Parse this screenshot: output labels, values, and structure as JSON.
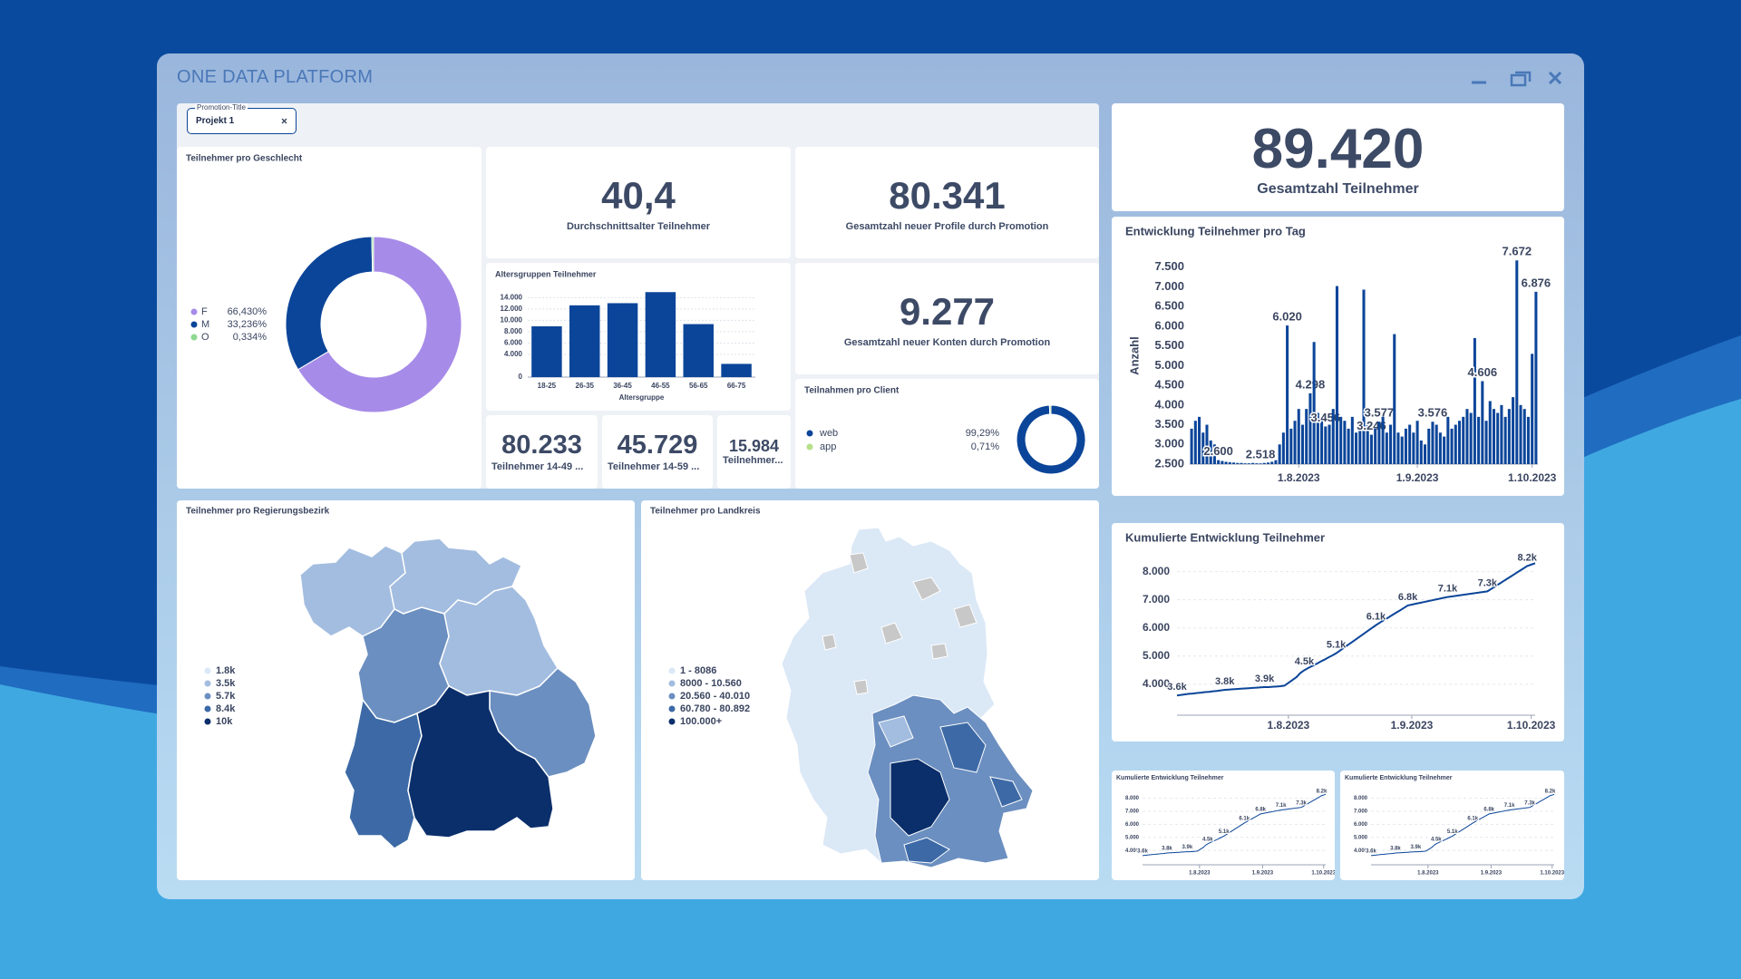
{
  "header": {
    "title": "ONE DATA PLATFORM"
  },
  "filter": {
    "label": "Promotion-Title",
    "value": "Projekt 1"
  },
  "kpis": [
    {
      "value": "40,4",
      "label": "Durchschnittsalter Teilnehmer"
    },
    {
      "value": "80.341",
      "label": "Gesamtzahl neuer Profile durch Promotion"
    },
    {
      "value": "9.277",
      "label": "Gesamtzahl neuer Konten durch Promotion"
    },
    {
      "value": "80.233",
      "label": "Teilnehmer 14-49 ..."
    },
    {
      "value": "45.729",
      "label": "Teilnehmer 14-59 ..."
    },
    {
      "value": "15.984",
      "label": "Teilnehmer..."
    },
    {
      "value": "89.420",
      "label": "Gesamtzahl Teilnehmer"
    }
  ],
  "maps": [
    {
      "title": "Teilnehmer pro Regierungsbezirk",
      "legend": [
        "1.8k",
        "3.5k",
        "5.7k",
        "8.4k",
        "10k"
      ],
      "colors": [
        "#dbe8f6",
        "#a3bde0",
        "#6b8fc0",
        "#3d6aa6",
        "#0b2f6b"
      ]
    },
    {
      "title": "Teilnehmer pro Landkreis",
      "legend": [
        "1 - 8086",
        "8000 - 10.560",
        "20.560 - 40.010",
        "60.780 - 80.892",
        "100.000+"
      ],
      "colors": [
        "#dbe8f6",
        "#a3bde0",
        "#6b8fc0",
        "#3d6aa6",
        "#0b2f6b"
      ]
    }
  ],
  "chart_data": [
    {
      "type": "pie",
      "title": "Teilnehmer pro Geschlecht",
      "categories": [
        "F",
        "M",
        "O"
      ],
      "values": [
        66.43,
        33.236,
        0.334
      ],
      "value_labels": [
        "66,430%",
        "33,236%",
        "0,334%"
      ],
      "colors": [
        "#a78be8",
        "#0b4599",
        "#8fd88f"
      ]
    },
    {
      "type": "bar",
      "title": "Altersgruppen Teilnehmer",
      "x_label": "Altersgruppe",
      "categories": [
        "18-25",
        "26-35",
        "36-45",
        "46-55",
        "56-65",
        "66-75"
      ],
      "values": [
        8950,
        12650,
        13030,
        14980,
        9340,
        2330
      ],
      "color": "#0b4599",
      "ylim": [
        0,
        15500
      ],
      "yticks": [
        0,
        {
          "value": 4000,
          "label": "4.000"
        },
        {
          "value": 6000,
          "label": "6.000"
        },
        {
          "value": 8000,
          "label": "8.000"
        },
        {
          "value": 10000,
          "label": "10.000"
        },
        {
          "value": 12000,
          "label": "12.000"
        },
        {
          "value": 14000,
          "label": "14.000"
        }
      ],
      "grid": true
    },
    {
      "type": "pie",
      "title": "Teilnahmen pro Client",
      "categories": [
        "web",
        "app"
      ],
      "values": [
        99.29,
        0.71
      ],
      "value_labels": [
        "99,29%",
        "0,71%"
      ],
      "colors": [
        "#0b4599",
        "#b5e08a"
      ]
    },
    {
      "type": "bar",
      "title": "Entwicklung Teilnehmer pro Tag",
      "y_label": "Anzahl",
      "categories": [
        null,
        null,
        null,
        null,
        null,
        null,
        null,
        null,
        null,
        null,
        null,
        null,
        null,
        null,
        null,
        null,
        null,
        null,
        null,
        null,
        null,
        null,
        null,
        null,
        null,
        null,
        null,
        null,
        "1.8.2023",
        null,
        null,
        null,
        null,
        null,
        null,
        null,
        null,
        null,
        null,
        null,
        null,
        null,
        null,
        null,
        null,
        null,
        null,
        null,
        null,
        null,
        null,
        null,
        null,
        null,
        null,
        null,
        null,
        null,
        null,
        "1.9.2023",
        null,
        null,
        null,
        null,
        null,
        null,
        null,
        null,
        null,
        null,
        null,
        null,
        null,
        null,
        null,
        null,
        null,
        null,
        null,
        null,
        null,
        null,
        null,
        null,
        null,
        null,
        null,
        null,
        null,
        "1.10.2023",
        null
      ],
      "values": [
        3400,
        3600,
        3700,
        3300,
        3500,
        3100,
        3000,
        2600,
        2580,
        2560,
        2550,
        2540,
        2530,
        2530,
        2520,
        2520,
        2530,
        2520,
        2518,
        2530,
        2540,
        2560,
        2600,
        3000,
        3300,
        6020,
        3400,
        3600,
        3900,
        3500,
        3900,
        4298,
        5600,
        3800,
        3700,
        3456,
        3500,
        3900,
        7020,
        3700,
        3600,
        3400,
        3700,
        3300,
        3500,
        6930,
        3500,
        3246,
        3400,
        3577,
        3700,
        3300,
        3500,
        5800,
        3300,
        3200,
        3400,
        3500,
        3300,
        3600,
        3100,
        3000,
        3400,
        3576,
        3500,
        3300,
        3200,
        3700,
        3400,
        3500,
        3600,
        3700,
        3900,
        3800,
        5700,
        3700,
        4606,
        3600,
        4100,
        3900,
        3800,
        4000,
        3700,
        3900,
        4200,
        7672,
        4000,
        3900,
        3700,
        5300,
        6876
      ],
      "value_labels": [
        null,
        null,
        null,
        null,
        null,
        null,
        null,
        "2.600",
        null,
        null,
        null,
        null,
        null,
        null,
        null,
        null,
        null,
        null,
        "2.518",
        null,
        null,
        null,
        null,
        null,
        null,
        "6.020",
        null,
        null,
        null,
        null,
        null,
        "4.298",
        null,
        null,
        null,
        "3.456",
        null,
        null,
        null,
        null,
        null,
        null,
        null,
        null,
        null,
        null,
        null,
        "3.246",
        null,
        "3.577",
        null,
        null,
        null,
        null,
        null,
        null,
        null,
        null,
        null,
        null,
        null,
        null,
        null,
        "3.576",
        null,
        null,
        null,
        null,
        null,
        null,
        null,
        null,
        null,
        null,
        null,
        null,
        "4.606",
        null,
        null,
        null,
        null,
        null,
        null,
        null,
        null,
        "7.672",
        null,
        null,
        null,
        null,
        "6.876"
      ],
      "color": "#0b4599",
      "ylim": [
        2500,
        8000
      ],
      "yticks": [
        {
          "value": 2500,
          "label": "2.500"
        },
        {
          "value": 3000,
          "label": "3.000"
        },
        {
          "value": 3500,
          "label": "3.500"
        },
        {
          "value": 4000,
          "label": "4.000"
        },
        {
          "value": 4500,
          "label": "4.500"
        },
        {
          "value": 5000,
          "label": "5.000"
        },
        {
          "value": 5500,
          "label": "5.500"
        },
        {
          "value": 6000,
          "label": "6.000"
        },
        {
          "value": 6500,
          "label": "6.500"
        },
        {
          "value": 7000,
          "label": "7.000"
        },
        {
          "value": 7500,
          "label": "7.500"
        }
      ],
      "grid": false
    },
    {
      "type": "line",
      "title": "Kumulierte Entwicklung Teilnehmer",
      "categories": [
        null,
        null,
        null,
        null,
        null,
        null,
        null,
        null,
        null,
        null,
        null,
        null,
        null,
        null,
        null,
        null,
        null,
        null,
        null,
        null,
        null,
        null,
        null,
        null,
        null,
        null,
        null,
        null,
        "1.8.2023",
        null,
        null,
        null,
        null,
        null,
        null,
        null,
        null,
        null,
        null,
        null,
        null,
        null,
        null,
        null,
        null,
        null,
        null,
        null,
        null,
        null,
        null,
        null,
        null,
        null,
        null,
        null,
        null,
        null,
        null,
        "1.9.2023",
        null,
        null,
        null,
        null,
        null,
        null,
        null,
        null,
        null,
        null,
        null,
        null,
        null,
        null,
        null,
        null,
        null,
        null,
        null,
        null,
        null,
        null,
        null,
        null,
        null,
        null,
        null,
        null,
        null,
        "1.10.2023",
        null
      ],
      "values": [
        3600,
        3620,
        3640,
        3660,
        3670,
        3690,
        3700,
        3720,
        3730,
        3750,
        3760,
        3780,
        3800,
        3810,
        3820,
        3830,
        3840,
        3850,
        3860,
        3870,
        3880,
        3890,
        3900,
        3900,
        3910,
        3920,
        3930,
        3950,
        4050,
        4150,
        4250,
        4400,
        4500,
        4580,
        4650,
        4720,
        4800,
        4870,
        4950,
        5020,
        5100,
        5200,
        5300,
        5400,
        5500,
        5600,
        5700,
        5800,
        5900,
        6000,
        6100,
        6190,
        6280,
        6360,
        6450,
        6540,
        6620,
        6710,
        6800,
        6830,
        6860,
        6890,
        6920,
        6950,
        6980,
        7010,
        7040,
        7070,
        7100,
        7120,
        7140,
        7160,
        7180,
        7200,
        7220,
        7240,
        7260,
        7280,
        7300,
        7390,
        7480,
        7570,
        7660,
        7750,
        7840,
        7930,
        8020,
        8110,
        8200,
        8250,
        8300
      ],
      "value_labels": [
        "3.6k",
        null,
        null,
        null,
        null,
        null,
        null,
        null,
        null,
        null,
        null,
        null,
        "3.8k",
        null,
        null,
        null,
        null,
        null,
        null,
        null,
        null,
        null,
        "3.9k",
        null,
        null,
        null,
        null,
        null,
        null,
        null,
        null,
        null,
        "4.5k",
        null,
        null,
        null,
        null,
        null,
        null,
        null,
        "5.1k",
        null,
        null,
        null,
        null,
        null,
        null,
        null,
        null,
        null,
        "6.1k",
        null,
        null,
        null,
        null,
        null,
        null,
        null,
        "6.8k",
        null,
        null,
        null,
        null,
        null,
        null,
        null,
        null,
        null,
        "7.1k",
        null,
        null,
        null,
        null,
        null,
        null,
        null,
        null,
        null,
        "7.3k",
        null,
        null,
        null,
        null,
        null,
        null,
        null,
        null,
        null,
        "8.2k",
        null,
        null
      ],
      "color": "#0b4599",
      "ylim": [
        2900,
        8600
      ],
      "yticks": [
        {
          "value": 4000,
          "label": "4.000"
        },
        {
          "value": 5000,
          "label": "5.000"
        },
        {
          "value": 6000,
          "label": "6.000"
        },
        {
          "value": 7000,
          "label": "7.000"
        },
        {
          "value": 8000,
          "label": "8.000"
        }
      ],
      "grid": true
    }
  ]
}
